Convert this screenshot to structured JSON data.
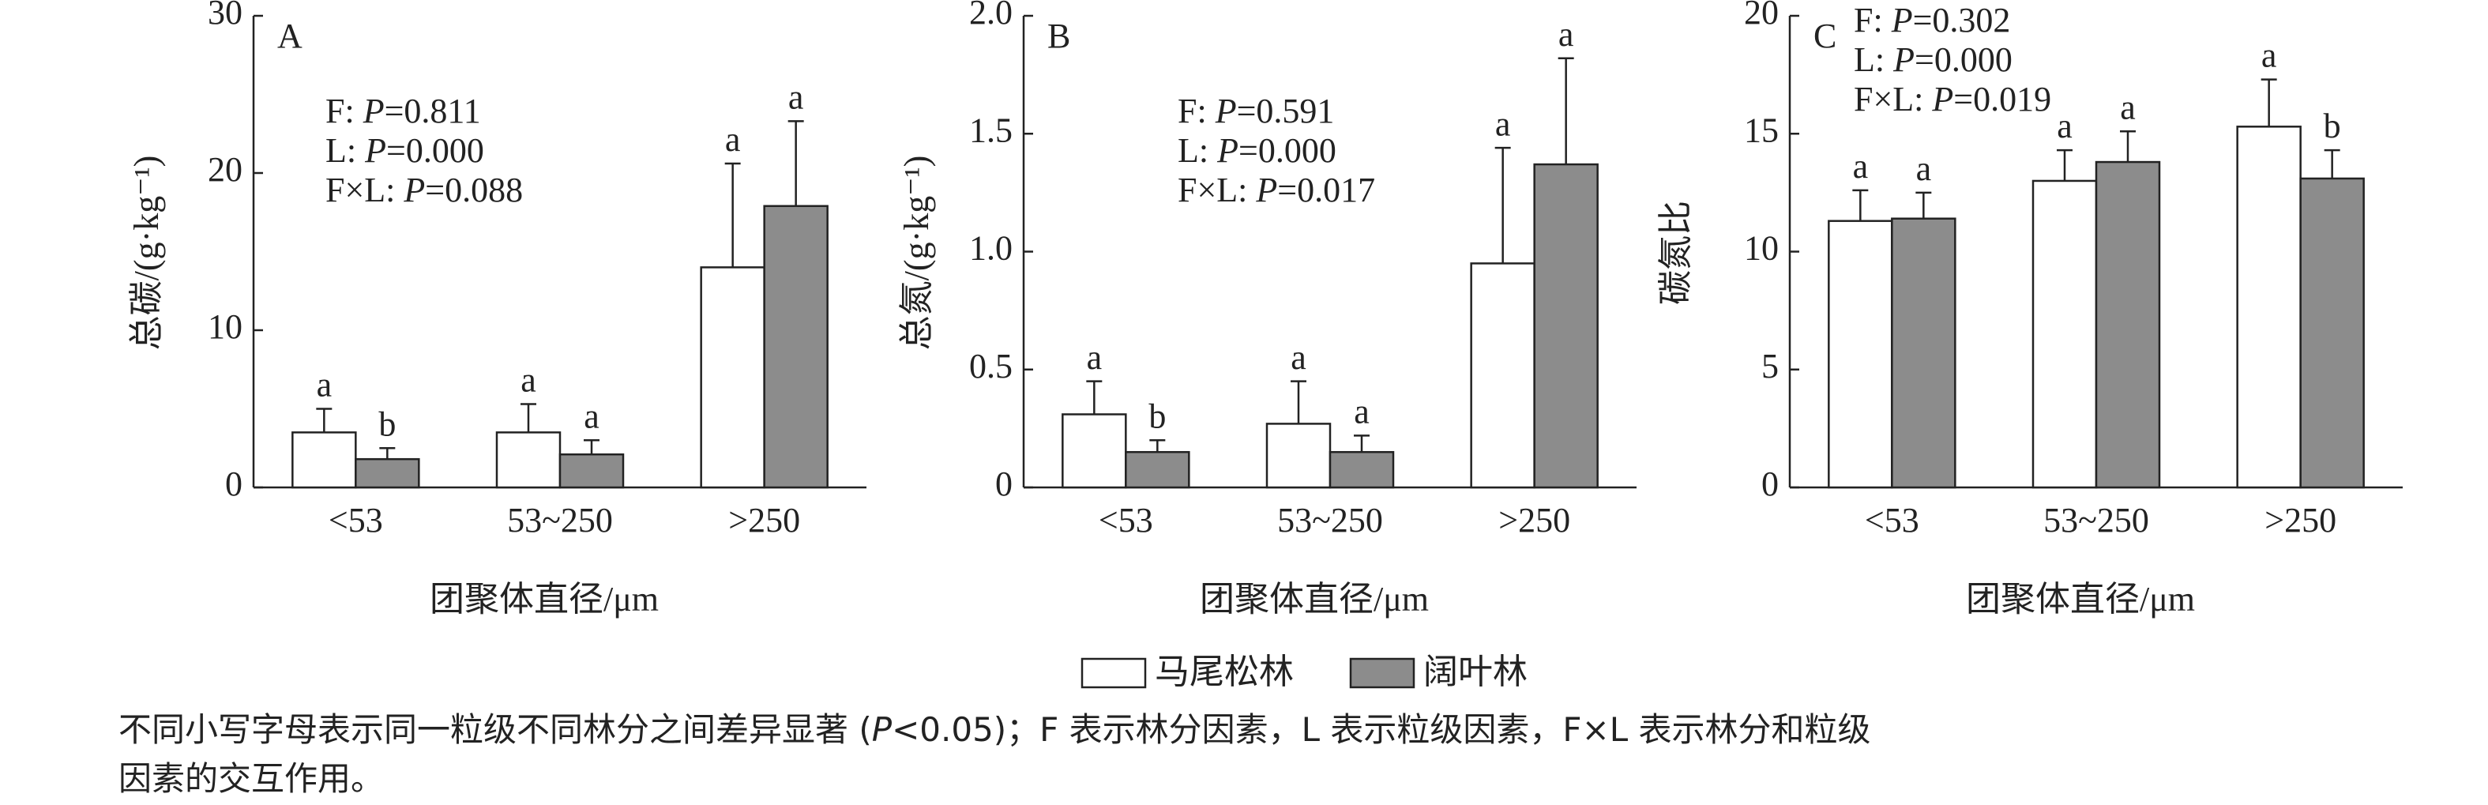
{
  "chart_data": [
    {
      "type": "bar",
      "panel": "A",
      "ylabel": "总碳/(g·kg⁻¹)",
      "xlabel": "团聚体直径/μm",
      "categories": [
        "<53",
        "53~250",
        ">250"
      ],
      "series": [
        {
          "name": "马尾松林",
          "color": "#ffffff",
          "values": [
            3.5,
            3.5,
            14.0
          ],
          "errors": [
            1.5,
            1.8,
            6.6
          ],
          "letters": [
            "a",
            "a",
            "a"
          ]
        },
        {
          "name": "阔叶林",
          "color": "#8c8c8c",
          "values": [
            1.8,
            2.1,
            17.9
          ],
          "errors": [
            0.7,
            0.9,
            5.4
          ],
          "letters": [
            "b",
            "a",
            "a"
          ]
        }
      ],
      "ylim": [
        0,
        30
      ],
      "yticks": [
        0,
        10,
        20,
        30
      ],
      "annotations": [
        {
          "label": "F: ",
          "p": "P",
          "value": "=0.811"
        },
        {
          "label": "L: ",
          "p": "P",
          "value": "=0.000"
        },
        {
          "label": "F×L: ",
          "p": "P",
          "value": "=0.088"
        }
      ]
    },
    {
      "type": "bar",
      "panel": "B",
      "ylabel": "总氮/(g·kg⁻¹)",
      "xlabel": "团聚体直径/μm",
      "categories": [
        "<53",
        "53~250",
        ">250"
      ],
      "series": [
        {
          "name": "马尾松林",
          "color": "#ffffff",
          "values": [
            0.31,
            0.27,
            0.95
          ],
          "errors": [
            0.14,
            0.18,
            0.49
          ],
          "letters": [
            "a",
            "a",
            "a"
          ]
        },
        {
          "name": "阔叶林",
          "color": "#8c8c8c",
          "values": [
            0.15,
            0.15,
            1.37
          ],
          "errors": [
            0.05,
            0.07,
            0.45
          ],
          "letters": [
            "b",
            "a",
            "a"
          ]
        }
      ],
      "ylim": [
        0,
        2.0
      ],
      "yticks": [
        0,
        0.5,
        {
          "value": 1,
          "label": "1.0"
        },
        1.5,
        {
          "value": 2,
          "label": "2.0"
        }
      ],
      "annotations": [
        {
          "label": "F: ",
          "p": "P",
          "value": "=0.591"
        },
        {
          "label": "L: ",
          "p": "P",
          "value": "=0.000"
        },
        {
          "label": "F×L: ",
          "p": "P",
          "value": "=0.017"
        }
      ]
    },
    {
      "type": "bar",
      "panel": "C",
      "ylabel": "碳氮比",
      "xlabel": "团聚体直径/μm",
      "categories": [
        "<53",
        "53~250",
        ">250"
      ],
      "series": [
        {
          "name": "马尾松林",
          "color": "#ffffff",
          "values": [
            11.3,
            13.0,
            15.3
          ],
          "errors": [
            1.3,
            1.3,
            2.0
          ],
          "letters": [
            "a",
            "a",
            "a"
          ]
        },
        {
          "name": "阔叶林",
          "color": "#8c8c8c",
          "values": [
            11.4,
            13.8,
            13.1
          ],
          "errors": [
            1.1,
            1.3,
            1.2
          ],
          "letters": [
            "a",
            "a",
            "b"
          ]
        }
      ],
      "ylim": [
        0,
        20
      ],
      "yticks": [
        0,
        5,
        10,
        15,
        20
      ],
      "annotations": [
        {
          "label": "F: ",
          "p": "P",
          "value": "=0.302"
        },
        {
          "label": "L: ",
          "p": "P",
          "value": "=0.000"
        },
        {
          "label": "F×L: ",
          "p": "P",
          "value": "=0.019"
        }
      ]
    }
  ],
  "caption": [
    [
      "不同小写字母表示同一粒级不同林分之间差异显著 (",
      "P",
      "<0.05)；F 表示林分因素，L 表示粒级因素，F×L 表示林分和粒级"
    ],
    [
      "因素的交互作用。"
    ]
  ]
}
